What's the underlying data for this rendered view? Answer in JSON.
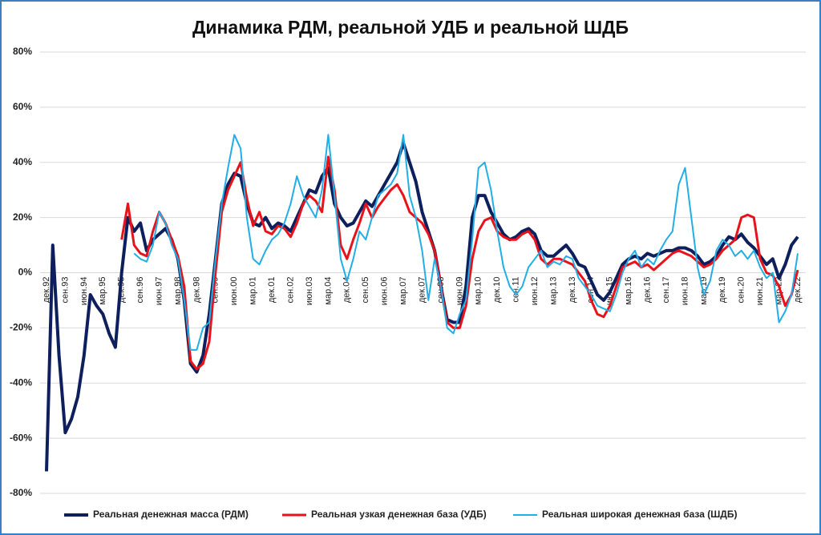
{
  "chart_data": {
    "type": "line",
    "title": "Динамика РДМ, реальной УДБ и реальной ШДБ",
    "categories": [
      "дек.92",
      null,
      null,
      "сен.93",
      null,
      null,
      "июн.94",
      null,
      null,
      "мар.95",
      null,
      null,
      "дек.95",
      null,
      null,
      "сен.96",
      null,
      null,
      "июн.97",
      null,
      null,
      "мар.98",
      null,
      null,
      "дек.98",
      null,
      null,
      "сен.99",
      null,
      null,
      "июн.00",
      null,
      null,
      "мар.01",
      null,
      null,
      "дек.01",
      null,
      null,
      "сен.02",
      null,
      null,
      "июн.03",
      null,
      null,
      "мар.04",
      null,
      null,
      "дек.04",
      null,
      null,
      "сен.05",
      null,
      null,
      "июн.06",
      null,
      null,
      "мар.07",
      null,
      null,
      "дек.07",
      null,
      null,
      "сен.08",
      null,
      null,
      "июн.09",
      null,
      null,
      "мар.10",
      null,
      null,
      "дек.10",
      null,
      null,
      "сен.11",
      null,
      null,
      "июн.12",
      null,
      null,
      "мар.13",
      null,
      null,
      "дек.13",
      null,
      null,
      "сен.14",
      null,
      null,
      "июн.15",
      null,
      null,
      "мар.16",
      null,
      null,
      "дек.16",
      null,
      null,
      "сен.17",
      null,
      null,
      "июн.18",
      null,
      null,
      "мар.19",
      null,
      null,
      "дек.19",
      null,
      null,
      "сен.20",
      null,
      null,
      "июн.21",
      null,
      null,
      "мар.22",
      null,
      null,
      "дек.22"
    ],
    "series": [
      {
        "name": "Реальная денежная масса (РДМ)",
        "color": "#0d1f5c",
        "values": [
          -72,
          10,
          -30,
          -58,
          -53,
          -45,
          -30,
          -8,
          -12,
          -15,
          -22,
          -27,
          0,
          20,
          15,
          18,
          8,
          12,
          14,
          16,
          12,
          5,
          -10,
          -33,
          -36,
          -30,
          -15,
          5,
          25,
          32,
          36,
          35,
          25,
          18,
          17,
          20,
          16,
          18,
          17,
          15,
          20,
          25,
          30,
          29,
          35,
          38,
          25,
          20,
          17,
          18,
          22,
          26,
          24,
          28,
          32,
          36,
          40,
          47,
          40,
          33,
          22,
          15,
          8,
          -5,
          -17,
          -18,
          -18,
          -5,
          20,
          28,
          28,
          22,
          18,
          14,
          12,
          13,
          15,
          16,
          14,
          8,
          6,
          6,
          8,
          10,
          7,
          3,
          2,
          -3,
          -8,
          -10,
          -7,
          -2,
          3,
          5,
          6,
          5,
          7,
          6,
          7,
          8,
          8,
          9,
          9,
          8,
          6,
          3,
          4,
          6,
          10,
          13,
          12,
          14,
          11,
          9,
          6,
          3,
          5,
          -2,
          3,
          10,
          13
        ]
      },
      {
        "name": "Реальная узкая денежная база (УДБ)",
        "color": "#e8121a",
        "values": [
          null,
          null,
          null,
          null,
          null,
          null,
          null,
          null,
          null,
          null,
          null,
          null,
          12,
          25,
          10,
          7,
          6,
          15,
          22,
          18,
          12,
          6,
          -5,
          -32,
          -35,
          -33,
          -25,
          0,
          22,
          30,
          35,
          40,
          27,
          17,
          22,
          15,
          14,
          17,
          16,
          13,
          18,
          25,
          28,
          26,
          22,
          42,
          30,
          10,
          5,
          12,
          18,
          25,
          20,
          24,
          27,
          30,
          32,
          28,
          22,
          20,
          18,
          14,
          8,
          -5,
          -18,
          -20,
          -20,
          -12,
          5,
          15,
          19,
          20,
          15,
          13,
          12,
          12,
          14,
          15,
          12,
          5,
          3,
          5,
          5,
          4,
          3,
          0,
          -3,
          -10,
          -15,
          -16,
          -12,
          -5,
          2,
          3,
          4,
          2,
          3,
          1,
          3,
          5,
          7,
          8,
          7,
          6,
          4,
          2,
          3,
          5,
          8,
          10,
          12,
          20,
          21,
          20,
          5,
          0,
          -1,
          -5,
          -12,
          -8,
          1
        ]
      },
      {
        "name": "Реальная широкая денежная база (ШДБ)",
        "color": "#22aee6",
        "values": [
          null,
          null,
          null,
          null,
          null,
          null,
          null,
          null,
          null,
          null,
          null,
          null,
          null,
          null,
          7,
          5,
          4,
          10,
          22,
          18,
          10,
          5,
          -10,
          -28,
          -28,
          -20,
          -18,
          5,
          25,
          38,
          50,
          45,
          20,
          5,
          3,
          8,
          12,
          14,
          18,
          25,
          35,
          28,
          24,
          20,
          30,
          50,
          28,
          5,
          -3,
          5,
          15,
          12,
          20,
          28,
          30,
          32,
          36,
          50,
          28,
          20,
          8,
          -10,
          5,
          -5,
          -20,
          -22,
          -15,
          -10,
          12,
          38,
          40,
          30,
          15,
          2,
          -5,
          -8,
          -5,
          2,
          5,
          8,
          2,
          4,
          3,
          6,
          5,
          -2,
          -5,
          -8,
          -12,
          -13,
          -14,
          -8,
          0,
          5,
          8,
          2,
          5,
          3,
          8,
          12,
          15,
          32,
          38,
          20,
          2,
          -8,
          -3,
          8,
          12,
          10,
          6,
          8,
          5,
          8,
          2,
          -2,
          0,
          -18,
          -14,
          -8,
          7
        ]
      }
    ],
    "ylim": [
      -80,
      80
    ],
    "yticks": [
      {
        "value": -80,
        "label": "-80%"
      },
      {
        "value": -60,
        "label": "-60%"
      },
      {
        "value": -40,
        "label": "-40%"
      },
      {
        "value": -20,
        "label": "-20%"
      },
      {
        "value": 0,
        "label": "0%"
      },
      {
        "value": 20,
        "label": "20%"
      },
      {
        "value": 40,
        "label": "40%"
      },
      {
        "value": 60,
        "label": "60%"
      },
      {
        "value": 80,
        "label": "80%"
      }
    ],
    "grid": true,
    "legend": "bottom"
  }
}
